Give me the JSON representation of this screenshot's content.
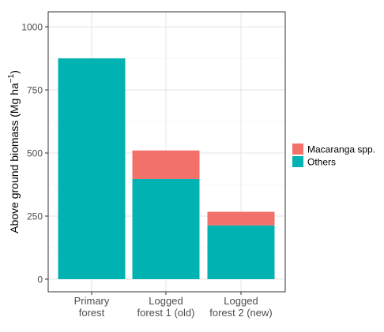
{
  "chart_data": {
    "type": "bar",
    "stacked": true,
    "categories": [
      [
        "Primary",
        "forest"
      ],
      [
        "Logged",
        "forest 1 (old)"
      ],
      [
        "Logged",
        "forest 2 (new)"
      ]
    ],
    "series": [
      {
        "name": "Others",
        "color": "#00b2b2",
        "values": [
          875,
          397,
          213
        ]
      },
      {
        "name": "Macaranga spp.",
        "color": "#f2716a",
        "values": [
          0,
          113,
          54
        ]
      }
    ],
    "ylabel": "Above ground biomass (Mg ha",
    "ylabel_superscript": "−1",
    "ylabel_close": ")",
    "ylim": [
      0,
      1000
    ],
    "yticks": [
      "0",
      "250",
      "500",
      "750",
      "1000"
    ],
    "grid": true,
    "legend": {
      "position": "right",
      "order": [
        "Macaranga spp.",
        "Others"
      ]
    }
  }
}
